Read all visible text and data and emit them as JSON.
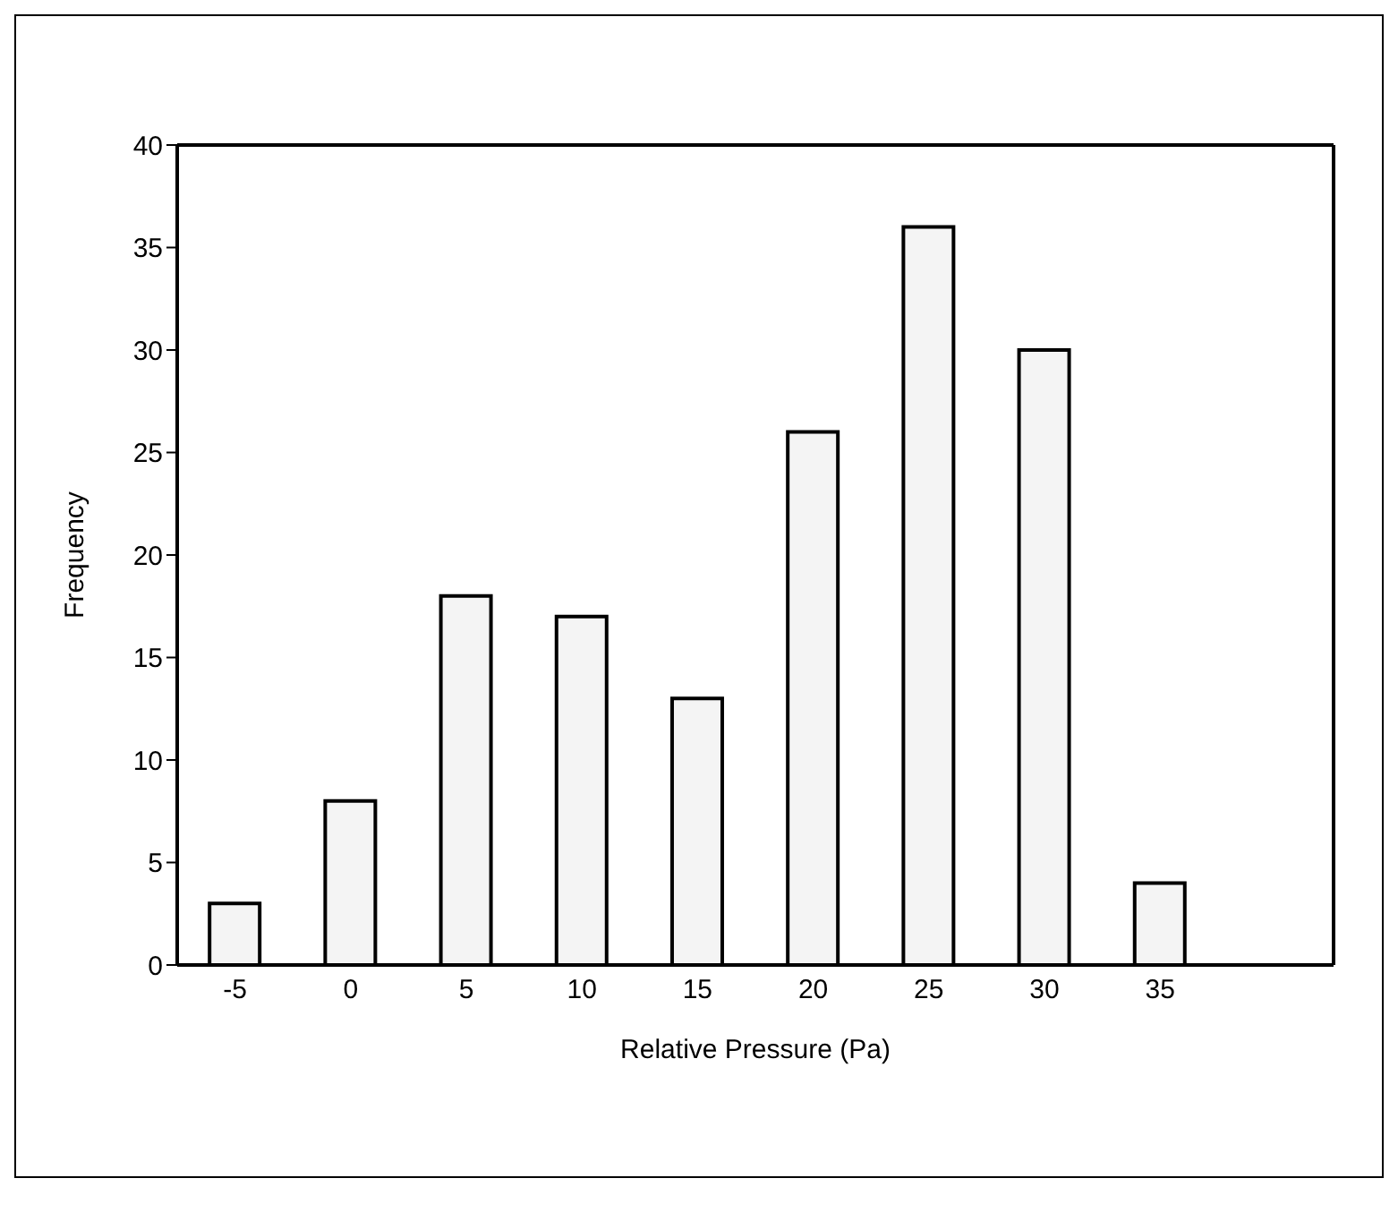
{
  "chart_data": {
    "type": "bar",
    "xlabel": "Relative Pressure (Pa)",
    "ylabel": "Frequency",
    "categories": [
      "-5",
      "0",
      "5",
      "10",
      "15",
      "20",
      "25",
      "30",
      "35",
      null
    ],
    "values": [
      3,
      8,
      18,
      17,
      13,
      26,
      36,
      30,
      4,
      null
    ],
    "color": "#f4f4f4",
    "ylim": [
      0,
      40
    ],
    "yticks": [
      0,
      5,
      10,
      15,
      20,
      25,
      30,
      35,
      40
    ],
    "grid": false,
    "legend": false
  }
}
